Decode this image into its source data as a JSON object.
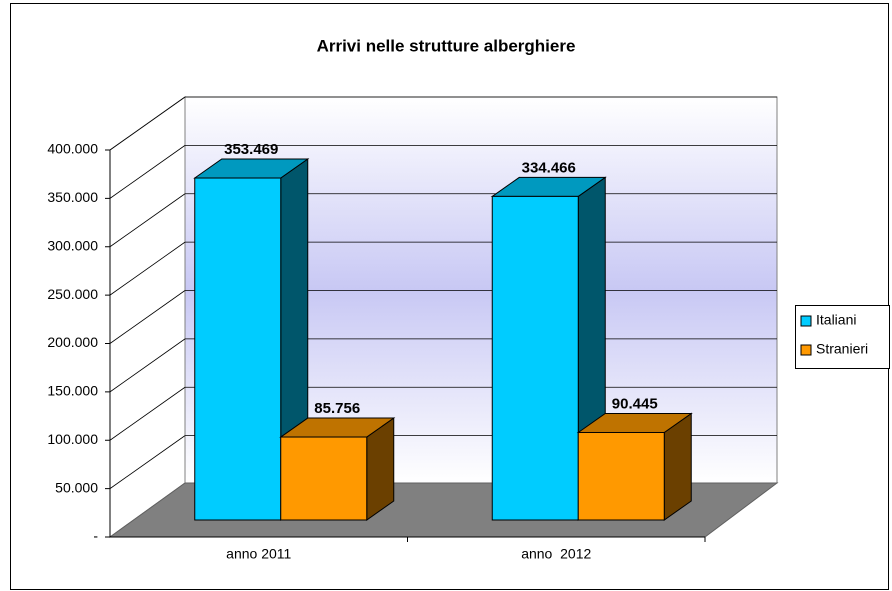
{
  "chart_data": {
    "type": "bar3d",
    "title": "Arrivi nelle strutture alberghiere",
    "categories": [
      "anno 2011",
      "anno  2012"
    ],
    "series": [
      {
        "name": "Italiani",
        "color": "#00ccff",
        "values": [
          353469,
          334466
        ],
        "value_labels": [
          "353.469",
          "334.466"
        ]
      },
      {
        "name": "Stranieri",
        "color": "#ff9900",
        "values": [
          85756,
          90445
        ],
        "value_labels": [
          "85.756",
          "90.445"
        ]
      }
    ],
    "ylim": [
      0,
      400000
    ],
    "yticks": [
      {
        "value": 0,
        "label": "-"
      },
      {
        "value": 50000,
        "label": "50.000"
      },
      {
        "value": 100000,
        "label": "100.000"
      },
      {
        "value": 150000,
        "label": "150.000"
      },
      {
        "value": 200000,
        "label": "200.000"
      },
      {
        "value": 250000,
        "label": "250.000"
      },
      {
        "value": 300000,
        "label": "300.000"
      },
      {
        "value": 350000,
        "label": "350.000"
      },
      {
        "value": 400000,
        "label": "400.000"
      }
    ],
    "grid": true,
    "legend": "right"
  }
}
